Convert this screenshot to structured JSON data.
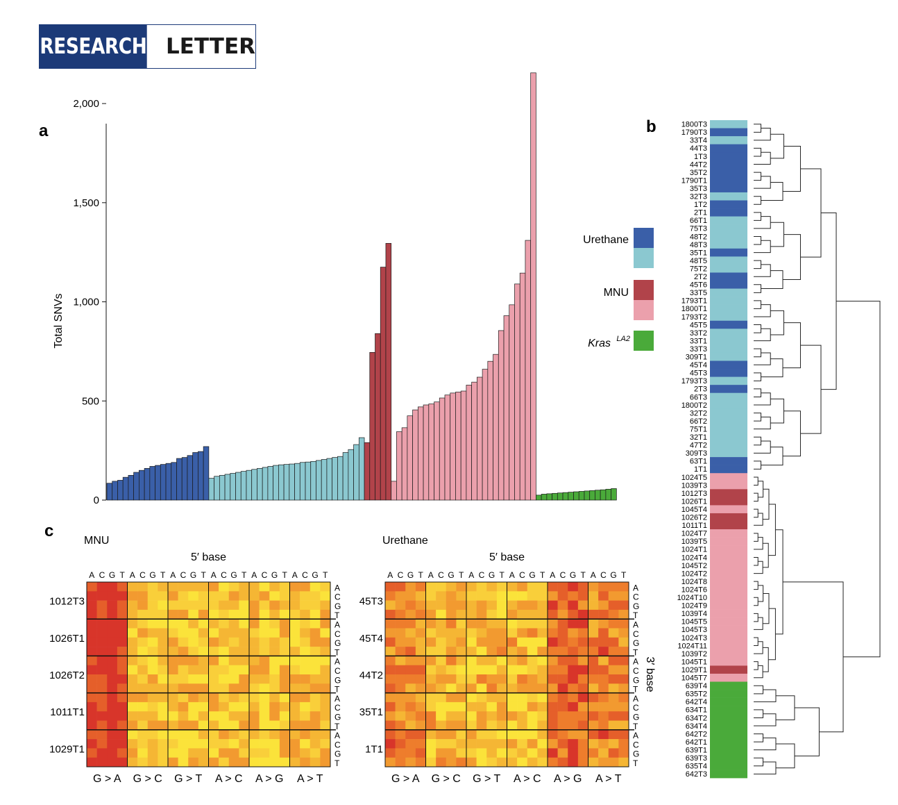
{
  "header": {
    "left": "RESEARCH",
    "right": "LETTER"
  },
  "colors": {
    "urethane_dark": "#3a5fa8",
    "urethane_light": "#8bc8d0",
    "mnu_dark": "#b1434a",
    "mnu_light": "#eba0ac",
    "kras": "#4aaa3a"
  },
  "panel_labels": {
    "a": "a",
    "b": "b",
    "c": "c"
  },
  "chart_data": [
    {
      "type": "bar",
      "ylabel": "Total SNVs",
      "ylim": [
        0,
        2200
      ],
      "ticks": [
        0,
        500,
        1000,
        1500,
        2000
      ],
      "tick_labels": [
        "0",
        "500",
        "1,000",
        "1,500",
        "2,000"
      ],
      "legend": [
        {
          "label": "Urethane",
          "colors": [
            "#3a5fa8",
            "#8bc8d0"
          ]
        },
        {
          "label": "MNU",
          "colors": [
            "#b1434a",
            "#eba0ac"
          ]
        },
        {
          "label": "Kras",
          "sup": "LA2",
          "colors": [
            "#4aaa3a"
          ]
        }
      ],
      "series": [
        {
          "group": "urethane_dark",
          "values": [
            85,
            95,
            100,
            115,
            125,
            140,
            150,
            160,
            170,
            175,
            180,
            185,
            190,
            210,
            215,
            225,
            240,
            245,
            270
          ]
        },
        {
          "group": "urethane_light",
          "values": [
            110,
            120,
            125,
            130,
            135,
            140,
            145,
            150,
            155,
            160,
            165,
            170,
            175,
            178,
            180,
            182,
            185,
            190,
            192,
            195,
            200,
            205,
            210,
            215,
            220,
            240,
            255,
            280,
            315
          ]
        },
        {
          "group": "mnu_dark",
          "values": [
            290,
            745,
            840,
            1175,
            1295
          ]
        },
        {
          "group": "mnu_light",
          "values": [
            95,
            345,
            365,
            425,
            455,
            470,
            480,
            485,
            495,
            515,
            530,
            540,
            545,
            550,
            580,
            595,
            620,
            660,
            700,
            735,
            855,
            930,
            985,
            1090,
            1145,
            1310,
            2155
          ]
        },
        {
          "group": "kras",
          "values": [
            25,
            30,
            32,
            34,
            36,
            38,
            40,
            42,
            44,
            46,
            48,
            50,
            52,
            55,
            58
          ]
        }
      ]
    },
    {
      "type": "dendrogram",
      "samples": [
        "1800T3",
        "1790T3",
        "33T4",
        "44T3",
        "1T3",
        "44T2",
        "35T2",
        "1790T1",
        "35T3",
        "32T3",
        "1T2",
        "2T1",
        "66T1",
        "75T3",
        "48T2",
        "48T3",
        "35T1",
        "48T5",
        "75T2",
        "2T2",
        "45T6",
        "33T5",
        "1793T1",
        "1800T1",
        "1793T2",
        "45T5",
        "33T2",
        "33T1",
        "33T3",
        "309T1",
        "45T4",
        "45T3",
        "1793T3",
        "2T3",
        "66T3",
        "1800T2",
        "32T2",
        "66T2",
        "75T1",
        "32T1",
        "47T2",
        "309T3",
        "63T1",
        "1T1",
        "1024T5",
        "1039T3",
        "1012T3",
        "1026T1",
        "1045T4",
        "1026T2",
        "1011T1",
        "1024T7",
        "1039T5",
        "1024T1",
        "1024T4",
        "1045T2",
        "1024T2",
        "1024T8",
        "1024T6",
        "1024T10",
        "1024T9",
        "1039T4",
        "1045T5",
        "1045T3",
        "1024T3",
        "1024T11",
        "1039T2",
        "1045T1",
        "1029T1",
        "1045T7",
        "639T4",
        "635T2",
        "642T4",
        "634T1",
        "634T2",
        "634T4",
        "642T2",
        "642T1",
        "639T1",
        "639T3",
        "635T4",
        "642T3"
      ],
      "sample_groups": [
        "ul",
        "ud",
        "ul",
        "ud",
        "ud",
        "ud",
        "ud",
        "ud",
        "ud",
        "ul",
        "ud",
        "ud",
        "ul",
        "ul",
        "ul",
        "ul",
        "ud",
        "ul",
        "ul",
        "ud",
        "ud",
        "ul",
        "ul",
        "ul",
        "ul",
        "ud",
        "ul",
        "ul",
        "ul",
        "ul",
        "ud",
        "ud",
        "ul",
        "ud",
        "ul",
        "ul",
        "ul",
        "ul",
        "ul",
        "ul",
        "ul",
        "ul",
        "ud",
        "ud",
        "ml",
        "ml",
        "md",
        "md",
        "ml",
        "md",
        "md",
        "ml",
        "ml",
        "ml",
        "ml",
        "ml",
        "ml",
        "ml",
        "ml",
        "ml",
        "ml",
        "ml",
        "ml",
        "ml",
        "ml",
        "ml",
        "ml",
        "ml",
        "md",
        "ml",
        "k",
        "k",
        "k",
        "k",
        "k",
        "k",
        "k",
        "k",
        "k",
        "k",
        "k",
        "k"
      ]
    },
    {
      "type": "heatmap",
      "title": "MNU",
      "top_axis_title": "5′ base",
      "top_bases": [
        "A",
        "C",
        "G",
        "T"
      ],
      "right_bases": [
        "A",
        "C",
        "G",
        "T"
      ],
      "mutation_types": [
        "G > A",
        "G > C",
        "G > T",
        "A > C",
        "A > G",
        "A > T"
      ],
      "samples": [
        "1012T3",
        "1026T1",
        "1026T2",
        "1011T1",
        "1029T1"
      ]
    },
    {
      "type": "heatmap",
      "title": "Urethane",
      "top_axis_title": "5′ base",
      "right_axis_title": "3′ base",
      "top_bases": [
        "A",
        "C",
        "G",
        "T"
      ],
      "right_bases": [
        "A",
        "C",
        "G",
        "T"
      ],
      "mutation_types": [
        "G > A",
        "G > C",
        "G > T",
        "A > C",
        "A > G",
        "A > T"
      ],
      "samples": [
        "45T3",
        "45T4",
        "44T2",
        "35T1",
        "1T1"
      ]
    }
  ]
}
